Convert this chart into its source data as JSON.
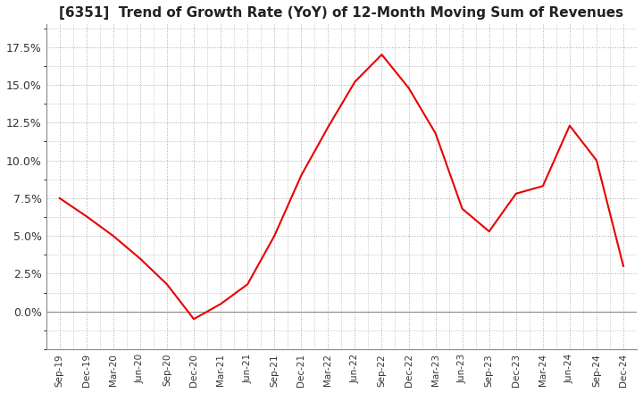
{
  "title": "[6351]  Trend of Growth Rate (YoY) of 12-Month Moving Sum of Revenues",
  "line_color": "#e80000",
  "background_color": "#ffffff",
  "grid_color": "#aaaaaa",
  "ylim": [
    -0.025,
    0.19
  ],
  "yticks": [
    0.0,
    0.025,
    0.05,
    0.075,
    0.1,
    0.125,
    0.15,
    0.175
  ],
  "x_labels": [
    "Sep-19",
    "Dec-19",
    "Mar-20",
    "Jun-20",
    "Sep-20",
    "Dec-20",
    "Mar-21",
    "Jun-21",
    "Sep-21",
    "Dec-21",
    "Mar-22",
    "Jun-22",
    "Sep-22",
    "Dec-22",
    "Mar-23",
    "Jun-23",
    "Sep-23",
    "Dec-23",
    "Mar-24",
    "Jun-24",
    "Sep-24",
    "Dec-24"
  ],
  "values": [
    0.075,
    0.063,
    0.05,
    0.035,
    0.018,
    -0.005,
    0.005,
    0.018,
    0.05,
    0.09,
    0.122,
    0.152,
    0.17,
    0.148,
    0.118,
    0.068,
    0.053,
    0.078,
    0.083,
    0.123,
    0.1,
    0.03
  ]
}
